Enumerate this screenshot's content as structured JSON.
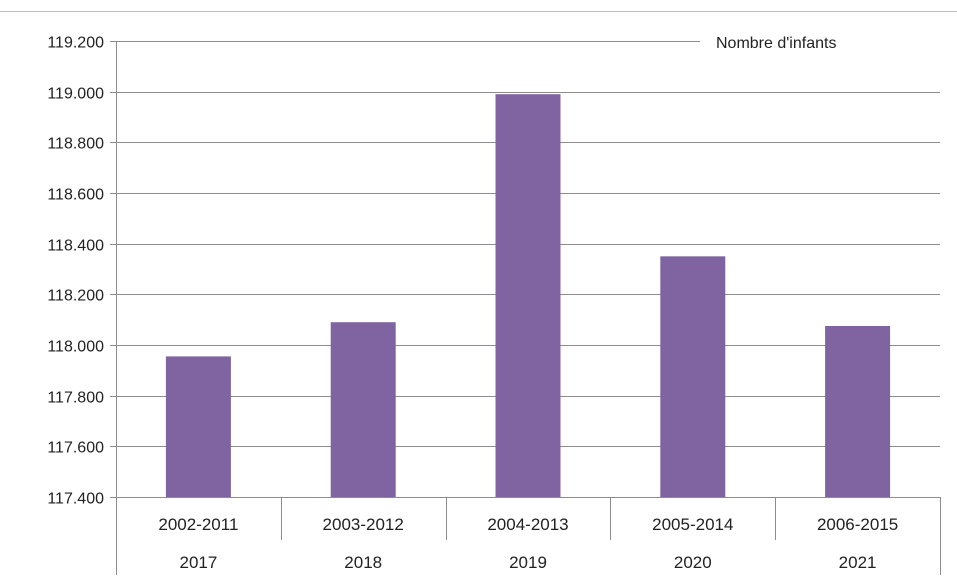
{
  "chart_data": {
    "type": "bar",
    "categories": [
      {
        "range": "2002-2011",
        "year": "2017"
      },
      {
        "range": "2003-2012",
        "year": "2018"
      },
      {
        "range": "2004-2013",
        "year": "2019"
      },
      {
        "range": "2005-2014",
        "year": "2020"
      },
      {
        "range": "2006-2015",
        "year": "2021"
      }
    ],
    "series": [
      {
        "name": "Nombre d'infants",
        "values": [
          117955,
          118090,
          118990,
          118350,
          118075
        ]
      }
    ],
    "ylim": [
      117400,
      119200
    ],
    "yticks": [
      "117.400",
      "117.600",
      "117.800",
      "118.000",
      "118.200",
      "118.400",
      "118.600",
      "118.800",
      "119.000",
      "119.200"
    ],
    "grid": true,
    "legend_position": "top-right",
    "colors": {
      "bar": "#8064A2",
      "grid": "#8c8c8c",
      "axis": "#8c8c8c",
      "text": "#222222"
    }
  }
}
